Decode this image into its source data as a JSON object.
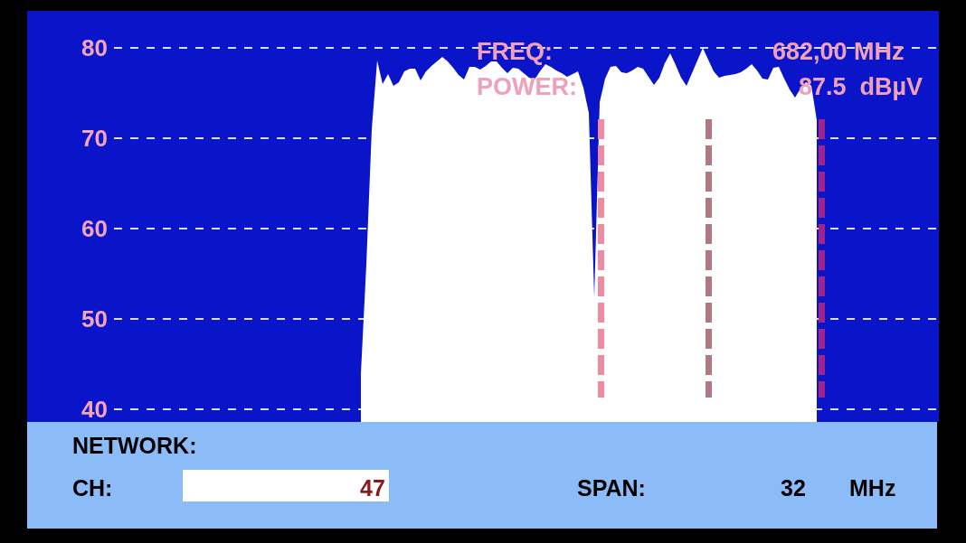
{
  "chart_data": {
    "type": "area",
    "tick_labels": "y",
    "grid": "y",
    "categories": [
      null,
      null,
      null,
      null,
      null,
      null,
      null,
      null,
      null,
      null,
      null,
      null,
      null,
      null,
      null,
      null,
      null,
      null,
      null,
      null,
      null,
      null,
      null,
      null,
      null,
      null,
      null,
      null,
      null,
      null,
      null,
      null,
      null,
      null,
      null,
      null,
      null,
      null,
      null,
      null,
      null,
      null,
      null,
      null,
      null,
      null,
      null,
      null,
      null,
      null,
      null,
      null,
      null,
      null,
      null,
      null,
      null,
      null,
      null,
      null,
      null,
      null,
      null,
      null,
      null,
      null,
      null,
      null,
      null,
      null,
      null,
      null,
      null,
      null,
      null,
      null,
      null,
      null,
      null,
      null,
      null,
      null,
      null,
      null,
      null,
      null,
      null,
      null,
      null,
      null,
      null,
      null,
      null,
      null,
      null,
      null,
      null,
      null,
      null,
      null,
      null,
      null,
      null,
      null,
      null,
      null,
      null,
      null,
      null,
      null,
      null,
      null,
      null,
      null,
      null,
      null,
      null,
      null,
      null,
      null,
      null,
      null,
      null,
      null,
      null,
      null,
      null,
      null,
      null,
      null,
      null,
      null,
      null,
      null,
      null,
      null,
      null,
      null,
      null,
      null,
      null,
      null,
      null,
      null,
      null,
      null,
      null,
      null,
      null,
      null,
      null,
      null
    ],
    "series": [
      {
        "color": "#ffffff",
        "values": [
          null,
          null,
          null,
          null,
          null,
          null,
          null,
          null,
          null,
          null,
          null,
          null,
          null,
          null,
          null,
          null,
          null,
          null,
          null,
          null,
          null,
          null,
          null,
          null,
          null,
          null,
          null,
          null,
          null,
          null,
          null,
          null,
          null,
          null,
          null,
          null,
          null,
          null,
          null,
          null,
          null,
          null,
          null,
          null,
          null,
          44,
          56,
          71,
          78.6,
          76,
          77.1,
          75.8,
          76.2,
          77.4,
          77.7,
          77.7,
          76.4,
          77.4,
          78,
          78.5,
          79,
          78.5,
          77.8,
          77,
          76.5,
          77.9,
          77.9,
          77.6,
          78,
          78.5,
          78.5,
          77.8,
          77.2,
          77.8,
          77.7,
          77.2,
          76.7,
          76.5,
          77.4,
          78.2,
          77.9,
          77.5,
          77.2,
          76.8,
          77.1,
          77.4,
          75.6,
          72.8,
          52.4,
          74,
          76.6,
          77.9,
          78,
          77.3,
          77.2,
          77.5,
          77.9,
          77.7,
          76.8,
          75.9,
          76.7,
          78.3,
          79.4,
          78.1,
          76.7,
          75.8,
          77.2,
          78.6,
          80,
          78.7,
          77.4,
          76.7,
          76.9,
          77,
          77.1,
          77.3,
          77.7,
          78.2,
          77.5,
          76.6,
          76.5,
          77.8,
          77.9,
          76.6,
          75.4,
          74.5,
          75.5,
          76.2,
          75.8,
          72,
          null,
          null,
          null,
          null,
          null,
          null,
          null,
          null,
          null,
          null,
          null,
          null,
          null,
          null,
          null,
          null,
          null,
          null,
          null,
          null,
          null,
          null
        ]
      }
    ],
    "ylim": [
      38.6,
      84.1
    ],
    "yticks": [
      40,
      50,
      60,
      70,
      80
    ],
    "annotations": [
      "FREQ:",
      "682,00 MHz",
      "POWER:",
      "87.5  dBµV",
      "NETWORK:",
      "CH:",
      "47",
      "SPAN:",
      "32",
      "MHz"
    ]
  }
}
